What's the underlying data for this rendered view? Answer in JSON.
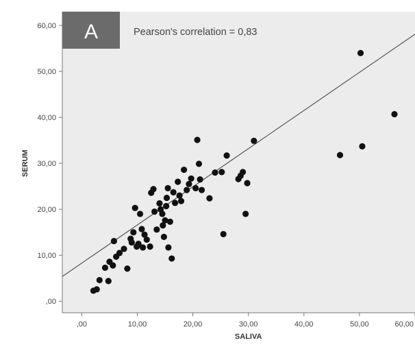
{
  "panel": {
    "letter": "A",
    "annotation": "Pearson's correlation = 0,83"
  },
  "colors": {
    "plot_bg": "#ececec",
    "panel_tag_bg": "#6b6b6b",
    "point": "#111111",
    "fit_line": "#555555",
    "axis": "#777777"
  },
  "chart_data": {
    "type": "scatter",
    "title": "",
    "xlabel": "SALIVA",
    "ylabel": "SERUM",
    "xlim": [
      -3.5,
      60
    ],
    "ylim": [
      -2.5,
      63
    ],
    "xticks": [
      0,
      10,
      20,
      30,
      40,
      50,
      60
    ],
    "xtick_labels": [
      ",00",
      "10,00",
      "20,00",
      "30,00",
      "40,00",
      "50,00",
      "60,00"
    ],
    "yticks": [
      0,
      10,
      20,
      30,
      40,
      50,
      60
    ],
    "ytick_labels": [
      ",00",
      "10,00",
      "20,00",
      "30,00",
      "40,00",
      "50,00",
      "60,00"
    ],
    "grid": false,
    "fit_line": {
      "slope": 0.83,
      "intercept": 8.3
    },
    "points": [
      [
        2.1,
        2.3
      ],
      [
        2.7,
        2.6
      ],
      [
        3.2,
        4.6
      ],
      [
        4.2,
        7.3
      ],
      [
        4.8,
        4.4
      ],
      [
        5.0,
        8.6
      ],
      [
        5.6,
        7.8
      ],
      [
        5.8,
        13.1
      ],
      [
        6.2,
        9.7
      ],
      [
        6.8,
        10.5
      ],
      [
        7.6,
        11.4
      ],
      [
        8.2,
        7.1
      ],
      [
        8.8,
        13.6
      ],
      [
        9.0,
        12.8
      ],
      [
        9.3,
        15.0
      ],
      [
        9.6,
        20.3
      ],
      [
        9.9,
        11.9
      ],
      [
        10.2,
        12.5
      ],
      [
        10.5,
        19.0
      ],
      [
        10.8,
        15.7
      ],
      [
        11.0,
        11.7
      ],
      [
        11.3,
        14.5
      ],
      [
        11.7,
        13.4
      ],
      [
        12.3,
        11.9
      ],
      [
        12.5,
        23.6
      ],
      [
        12.9,
        24.4
      ],
      [
        13.1,
        19.5
      ],
      [
        13.5,
        15.6
      ],
      [
        14.0,
        21.3
      ],
      [
        14.2,
        20.0
      ],
      [
        14.5,
        19.0
      ],
      [
        14.6,
        16.5
      ],
      [
        14.8,
        14.0
      ],
      [
        15.0,
        17.6
      ],
      [
        15.2,
        20.7
      ],
      [
        15.3,
        22.5
      ],
      [
        15.5,
        24.6
      ],
      [
        15.6,
        11.7
      ],
      [
        15.9,
        17.3
      ],
      [
        16.2,
        9.3
      ],
      [
        16.5,
        23.7
      ],
      [
        16.8,
        21.4
      ],
      [
        17.3,
        26.0
      ],
      [
        17.6,
        23.0
      ],
      [
        17.9,
        21.8
      ],
      [
        18.4,
        28.6
      ],
      [
        18.9,
        24.2
      ],
      [
        19.3,
        25.5
      ],
      [
        19.7,
        26.7
      ],
      [
        20.5,
        24.6
      ],
      [
        20.8,
        35.1
      ],
      [
        21.1,
        29.9
      ],
      [
        21.3,
        26.5
      ],
      [
        21.6,
        24.2
      ],
      [
        23.0,
        22.4
      ],
      [
        24.0,
        28.0
      ],
      [
        25.2,
        28.1
      ],
      [
        25.5,
        14.6
      ],
      [
        26.1,
        31.7
      ],
      [
        28.2,
        26.6
      ],
      [
        28.6,
        27.3
      ],
      [
        29.0,
        28.1
      ],
      [
        29.5,
        19.0
      ],
      [
        29.8,
        25.7
      ],
      [
        31.0,
        34.9
      ],
      [
        46.5,
        31.8
      ],
      [
        50.2,
        54.0
      ],
      [
        50.5,
        33.7
      ],
      [
        56.3,
        40.7
      ]
    ]
  }
}
